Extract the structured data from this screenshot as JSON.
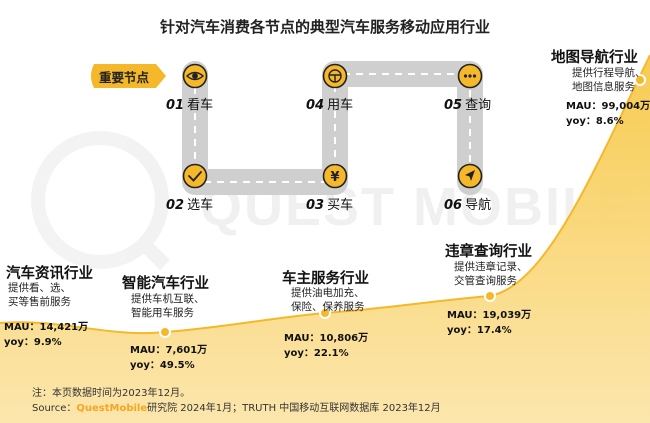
{
  "title": "针对汽车消费各节点的典型汽车服务移动应用行业",
  "key_nodes_label": "重要节点",
  "watermark": "QUEST MOBILE",
  "colors": {
    "accent": "#f5b82a",
    "road": "#cfcfcf",
    "road_dash": "#ffffff",
    "text": "#222222"
  },
  "nodes": [
    {
      "num": "01",
      "label": "看车",
      "icon": "eye-icon"
    },
    {
      "num": "02",
      "label": "选车",
      "icon": "check-icon"
    },
    {
      "num": "03",
      "label": "买车",
      "icon": "yen-icon"
    },
    {
      "num": "04",
      "label": "用车",
      "icon": "steering-wheel-icon"
    },
    {
      "num": "05",
      "label": "查询",
      "icon": "more-dots-icon"
    },
    {
      "num": "06",
      "label": "导航",
      "icon": "navigation-arrow-icon"
    }
  ],
  "industries": [
    {
      "name": "汽车资讯行业",
      "desc": [
        "提供看、选、",
        "买等售前服务"
      ],
      "mau_label": "MAU：",
      "mau": "14,421万",
      "yoy_label": "yoy：",
      "yoy": "9.9%"
    },
    {
      "name": "智能汽车行业",
      "desc": [
        "提供车机互联、",
        "智能用车服务"
      ],
      "mau_label": "MAU：",
      "mau": "7,601万",
      "yoy_label": "yoy：",
      "yoy": "49.5%"
    },
    {
      "name": "车主服务行业",
      "desc": [
        "提供油电加充、",
        "保险、保养服务"
      ],
      "mau_label": "MAU：",
      "mau": "10,806万",
      "yoy_label": "yoy：",
      "yoy": "22.1%"
    },
    {
      "name": "违章查询行业",
      "desc": [
        "提供违章记录、",
        "交管查询服务"
      ],
      "mau_label": "MAU：",
      "mau": "19,039万",
      "yoy_label": "yoy：",
      "yoy": "17.4%"
    },
    {
      "name": "地图导航行业",
      "desc": [
        "提供行程导航、",
        "地图信息服务"
      ],
      "mau_label": "MAU：",
      "mau": "99,004万",
      "yoy_label": "yoy：",
      "yoy": "8.6%"
    }
  ],
  "footer": {
    "note": "注：本页数据时间为2023年12月。",
    "source_label": "Source：",
    "brand": "QuestMobile",
    "source_text": "研究院 2024年1月；TRUTH 中国移动互联网数据库 2023年12月"
  }
}
